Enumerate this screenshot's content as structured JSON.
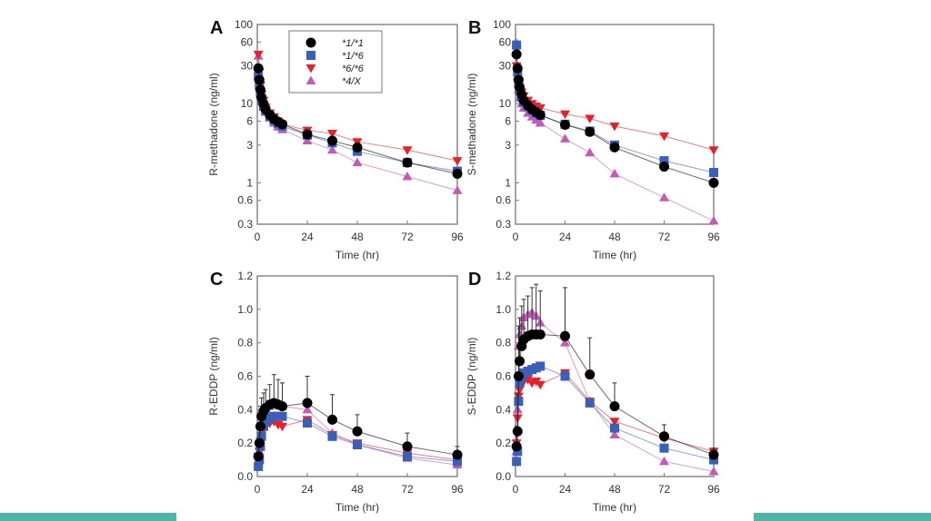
{
  "footer": {
    "accent_color": "#4db6a9"
  },
  "chart_data": [
    {
      "panel": "A",
      "type": "line",
      "title": "",
      "xlabel": "Time (hr)",
      "ylabel": "R-methadone (ng/ml)",
      "yscale": "log",
      "xlim": [
        0,
        96
      ],
      "ylim": [
        0.3,
        100
      ],
      "xticks": [
        0,
        24,
        48,
        72,
        96
      ],
      "yticks": [
        0.3,
        0.6,
        1,
        3,
        6,
        10,
        30,
        60,
        100
      ],
      "ytick_labels": [
        "0.3",
        "0.6",
        "1",
        "3",
        "6",
        "10",
        "30",
        "60",
        "100"
      ],
      "legend": {
        "position": "top-left",
        "entries": [
          "*1/*1",
          "*1/*6",
          "*6/*6",
          "*4/X"
        ]
      },
      "x": [
        0.5,
        1,
        1.5,
        2,
        3,
        4,
        6,
        8,
        10,
        12,
        24,
        36,
        48,
        72,
        96
      ],
      "series": [
        {
          "name": "*1/*1",
          "color": "#000000",
          "marker": "circle",
          "values": [
            28,
            20,
            15,
            12,
            10,
            8.5,
            7.2,
            6.4,
            5.9,
            5.5,
            4.1,
            3.4,
            2.8,
            1.8,
            1.3
          ]
        },
        {
          "name": "*1/*6",
          "color": "#3a5fb8",
          "marker": "square",
          "values": [
            22,
            17,
            14,
            11.5,
            9.5,
            8.2,
            7.0,
            6.2,
            5.6,
            5.2,
            4.0,
            3.2,
            2.5,
            1.8,
            1.4
          ]
        },
        {
          "name": "*6/*6",
          "color": "#e8202a",
          "marker": "triangle-down",
          "values": [
            42,
            25,
            17,
            13,
            11,
            9,
            7.6,
            6.8,
            6.0,
            5.5,
            4.6,
            4.2,
            3.3,
            2.6,
            1.9
          ]
        },
        {
          "name": "*4/X",
          "color": "#c45ab8",
          "marker": "triangle-up",
          "values": [
            40,
            18,
            13,
            10.5,
            9,
            7.8,
            6.6,
            5.7,
            5.1,
            4.7,
            3.4,
            2.6,
            1.8,
            1.2,
            0.8
          ]
        }
      ]
    },
    {
      "panel": "B",
      "type": "line",
      "title": "",
      "xlabel": "Time (hr)",
      "ylabel": "S-methadone (ng/ml)",
      "yscale": "log",
      "xlim": [
        0,
        96
      ],
      "ylim": [
        0.3,
        100
      ],
      "xticks": [
        0,
        24,
        48,
        72,
        96
      ],
      "yticks": [
        0.3,
        0.6,
        1,
        3,
        6,
        10,
        30,
        60,
        100
      ],
      "ytick_labels": [
        "0.3",
        "0.6",
        "1",
        "3",
        "6",
        "10",
        "30",
        "60",
        "100"
      ],
      "x": [
        0.5,
        1,
        1.5,
        2,
        3,
        4,
        6,
        8,
        10,
        12,
        24,
        36,
        48,
        72,
        96
      ],
      "series": [
        {
          "name": "*1/*1",
          "color": "#000000",
          "marker": "circle",
          "values": [
            42,
            28,
            20,
            16,
            13,
            11,
            9.5,
            8.5,
            7.8,
            7.2,
            5.4,
            4.4,
            2.8,
            1.6,
            1.0
          ]
        },
        {
          "name": "*1/*6",
          "color": "#3a5fb8",
          "marker": "square",
          "values": [
            55,
            25,
            18,
            14.5,
            12,
            10.5,
            9.2,
            8.3,
            7.6,
            7.1,
            5.5,
            4.5,
            3.0,
            1.9,
            1.35
          ]
        },
        {
          "name": "*6/*6",
          "color": "#e8202a",
          "marker": "triangle-down",
          "values": [
            30,
            24,
            19,
            16,
            14,
            12.5,
            11,
            10,
            9.3,
            8.8,
            7.4,
            6.5,
            5.2,
            3.9,
            2.6
          ]
        },
        {
          "name": "*4/X",
          "color": "#c45ab8",
          "marker": "triangle-up",
          "values": [
            58,
            22,
            15,
            12,
            10,
            8.8,
            7.6,
            6.8,
            6.2,
            5.7,
            3.6,
            2.4,
            1.3,
            0.65,
            0.33
          ]
        }
      ]
    },
    {
      "panel": "C",
      "type": "line",
      "title": "",
      "xlabel": "Time (hr)",
      "ylabel": "R-EDDP (ng/ml)",
      "yscale": "linear",
      "xlim": [
        0,
        96
      ],
      "ylim": [
        0,
        1.2
      ],
      "xticks": [
        0,
        24,
        48,
        72,
        96
      ],
      "yticks": [
        0.0,
        0.2,
        0.4,
        0.6,
        0.8,
        1.0,
        1.2
      ],
      "ytick_labels": [
        "0.0",
        "0.2",
        "0.4",
        "0.6",
        "0.8",
        "1.0",
        "1.2"
      ],
      "x": [
        0.5,
        1,
        1.5,
        2,
        3,
        4,
        6,
        8,
        10,
        12,
        24,
        36,
        48,
        72,
        96
      ],
      "series": [
        {
          "name": "*1/*1",
          "color": "#000000",
          "marker": "circle",
          "values": [
            0.12,
            0.2,
            0.3,
            0.36,
            0.39,
            0.41,
            0.43,
            0.44,
            0.43,
            0.42,
            0.44,
            0.34,
            0.27,
            0.18,
            0.13
          ],
          "error_upper": [
            0.2,
            0.3,
            0.42,
            0.47,
            0.5,
            0.52,
            0.55,
            0.61,
            0.58,
            0.56,
            0.6,
            0.49,
            0.37,
            0.26,
            0.18
          ]
        },
        {
          "name": "*1/*6",
          "color": "#3a5fb8",
          "marker": "square",
          "values": [
            0.06,
            0.1,
            0.18,
            0.24,
            0.3,
            0.33,
            0.35,
            0.36,
            0.36,
            0.36,
            0.32,
            0.24,
            0.19,
            0.12,
            0.09
          ]
        },
        {
          "name": "*6/*6",
          "color": "#e8202a",
          "marker": "triangle-down",
          "values": [
            0.12,
            0.15,
            0.2,
            0.24,
            0.28,
            0.3,
            0.32,
            0.33,
            0.31,
            0.3,
            0.34,
            0.25,
            0.2,
            0.14,
            0.1
          ]
        },
        {
          "name": "*4/X",
          "color": "#c45ab8",
          "marker": "triangle-up",
          "values": [
            0.08,
            0.15,
            0.25,
            0.32,
            0.37,
            0.4,
            0.42,
            0.43,
            0.44,
            0.42,
            0.4,
            0.26,
            0.19,
            0.11,
            0.07
          ]
        }
      ]
    },
    {
      "panel": "D",
      "type": "line",
      "title": "",
      "xlabel": "Time (hr)",
      "ylabel": "S-EDDP (ng/ml)",
      "yscale": "linear",
      "xlim": [
        0,
        96
      ],
      "ylim": [
        0,
        1.2
      ],
      "xticks": [
        0,
        24,
        48,
        72,
        96
      ],
      "yticks": [
        0.0,
        0.2,
        0.4,
        0.6,
        0.8,
        1.0,
        1.2
      ],
      "ytick_labels": [
        "0.0",
        "0.2",
        "0.4",
        "0.6",
        "0.8",
        "1.0",
        "1.2"
      ],
      "x": [
        0.5,
        1,
        1.5,
        2,
        3,
        4,
        6,
        8,
        10,
        12,
        24,
        36,
        48,
        72,
        96
      ],
      "series": [
        {
          "name": "*1/*1",
          "color": "#000000",
          "marker": "circle",
          "values": [
            0.18,
            0.27,
            0.6,
            0.69,
            0.78,
            0.82,
            0.84,
            0.85,
            0.85,
            0.85,
            0.84,
            0.61,
            0.42,
            0.24,
            0.13
          ],
          "error_upper": [
            0.3,
            0.5,
            0.9,
            0.95,
            1.02,
            1.06,
            1.08,
            1.13,
            1.15,
            1.11,
            1.13,
            0.83,
            0.56,
            0.31,
            0.17
          ]
        },
        {
          "name": "*1/*6",
          "color": "#3a5fb8",
          "marker": "square",
          "values": [
            0.09,
            0.15,
            0.45,
            0.56,
            0.6,
            0.62,
            0.63,
            0.64,
            0.65,
            0.66,
            0.6,
            0.44,
            0.29,
            0.17,
            0.1
          ]
        },
        {
          "name": "*6/*6",
          "color": "#e8202a",
          "marker": "triangle-down",
          "values": [
            0.2,
            0.35,
            0.48,
            0.52,
            0.55,
            0.57,
            0.58,
            0.56,
            0.57,
            0.55,
            0.62,
            0.45,
            0.33,
            0.23,
            0.15
          ]
        },
        {
          "name": "*4/X",
          "color": "#c45ab8",
          "marker": "triangle-up",
          "values": [
            0.15,
            0.4,
            0.78,
            0.85,
            0.9,
            0.95,
            0.97,
            0.98,
            0.96,
            0.92,
            0.8,
            0.45,
            0.25,
            0.09,
            0.03
          ]
        }
      ]
    }
  ]
}
